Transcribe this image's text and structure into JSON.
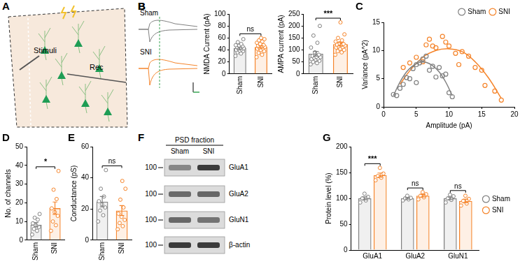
{
  "panels": [
    {
      "panel": "A",
      "schematic": {
        "stimulus": "Stimuli",
        "recording": "Rec"
      }
    },
    {
      "panel": "B",
      "traces": {
        "names": [
          "Sham",
          "SNI"
        ],
        "colors": [
          "#808080",
          "#f5842a"
        ]
      }
    },
    {
      "panel": "F",
      "blot": {
        "title": "PSD fraction",
        "lanes": [
          "Sham",
          "SNI"
        ],
        "rows": [
          {
            "label": "GluA1",
            "marker": 100
          },
          {
            "label": "GluA2",
            "marker": 100
          },
          {
            "label": "GluN1",
            "marker": 100
          },
          {
            "label": "β-actin",
            "marker": 100
          }
        ]
      }
    }
  ],
  "chart_data": [
    {
      "panel": "B",
      "type": "bar",
      "ylabel": "NMDA Current (pA)",
      "categories": [
        "Sham",
        "SNI"
      ],
      "values": [
        43,
        45
      ],
      "errors": [
        2,
        2
      ],
      "points": [
        [
          30,
          34,
          36,
          38,
          39,
          40,
          41,
          42,
          43,
          44,
          45,
          46,
          47,
          48,
          50,
          53,
          58
        ],
        [
          28,
          32,
          35,
          38,
          40,
          42,
          43,
          44,
          45,
          46,
          47,
          48,
          50,
          52,
          54,
          56,
          58,
          60
        ]
      ],
      "colors": [
        "#808080",
        "#f5842a"
      ],
      "ylim": [
        0,
        100
      ],
      "yticks": [
        0,
        20,
        40,
        60,
        80,
        100
      ],
      "grid": false,
      "annotations": [
        "ns"
      ]
    },
    {
      "type": "bar",
      "ylabel": "AMPA current (pA)",
      "categories": [
        "Sham",
        "SNI"
      ],
      "values": [
        84,
        124
      ],
      "errors": [
        10,
        7
      ],
      "points": [
        [
          40,
          45,
          50,
          55,
          60,
          62,
          65,
          68,
          70,
          72,
          75,
          80,
          90,
          110,
          130,
          160,
          200
        ],
        [
          80,
          90,
          95,
          100,
          105,
          110,
          112,
          115,
          118,
          120,
          122,
          125,
          128,
          135,
          140,
          150,
          165,
          215
        ]
      ],
      "colors": [
        "#808080",
        "#f5842a"
      ],
      "ylim": [
        0,
        250
      ],
      "yticks": [
        0,
        50,
        100,
        150,
        200,
        250
      ],
      "grid": false,
      "annotations": [
        "***"
      ]
    },
    {
      "panel": "C",
      "type": "scatter",
      "xlabel": "Amplitude (pA)",
      "ylabel": "Variance (pA^2)",
      "xlim": [
        0,
        20
      ],
      "xticks": [
        0,
        5,
        10,
        15,
        20
      ],
      "ylim": [
        0,
        15
      ],
      "yticks": [
        0,
        5,
        10,
        15
      ],
      "grid": false,
      "legend": "top-right",
      "series": [
        {
          "name": "Sham",
          "color": "#808080",
          "x": [
            1.5,
            2,
            2.5,
            3,
            3.5,
            4,
            4.5,
            5,
            5,
            5.5,
            6,
            6.5,
            7,
            7.5,
            8,
            8.5,
            9,
            9.5,
            10,
            10.5
          ],
          "values": [
            2.2,
            2,
            3.3,
            4,
            5.2,
            5,
            6.8,
            7.5,
            4.3,
            7.8,
            8.5,
            9,
            6.5,
            7.2,
            5.3,
            7,
            5.5,
            5.8,
            2.5,
            1.8
          ],
          "fit": {
            "x": [
              1.5,
              2.5,
              3.5,
              4.5,
              5.5,
              6.5,
              7.5,
              8.5,
              9.5,
              10.5
            ],
            "values": [
              2,
              4.4,
              6.2,
              7.3,
              7.9,
              7.9,
              7.3,
              6.2,
              4.4,
              2
            ]
          }
        },
        {
          "name": "SNI",
          "color": "#f5842a",
          "x": [
            3,
            4,
            5,
            6,
            6.5,
            7,
            7.5,
            8,
            9,
            9.5,
            10,
            11,
            11.5,
            12,
            13,
            14,
            15,
            15.5,
            17,
            18
          ],
          "values": [
            7,
            7.8,
            8.8,
            8,
            11,
            12,
            10.8,
            10.5,
            12.5,
            11.5,
            10.8,
            9.5,
            7.5,
            9.8,
            9,
            7,
            6.5,
            3.8,
            2.8,
            1.2
          ],
          "fit": {
            "x": [
              2.5,
              4,
              6,
              8,
              10,
              12,
              14,
              16,
              18
            ],
            "values": [
              4,
              6.4,
              8.8,
              10,
              10.3,
              9.8,
              8,
              5.2,
              1.5
            ]
          }
        }
      ]
    },
    {
      "panel": "D",
      "type": "bar",
      "ylabel": "No. of channels",
      "categories": [
        "Sham",
        "SNI"
      ],
      "values": [
        8.3,
        17.1
      ],
      "errors": [
        1.1,
        3.3
      ],
      "points": [
        [
          3,
          5,
          6,
          7,
          8,
          9,
          11,
          12,
          14
        ],
        [
          5,
          8,
          10,
          13,
          15,
          17,
          22,
          27,
          37
        ]
      ],
      "colors": [
        "#808080",
        "#f5842a"
      ],
      "ylim": [
        0,
        50
      ],
      "yticks": [
        0,
        10,
        20,
        30,
        40,
        50
      ],
      "grid": false,
      "annotations": [
        "*"
      ]
    },
    {
      "panel": "E",
      "type": "bar",
      "ylabel": "Conductance (pS)",
      "categories": [
        "Sham",
        "SNI"
      ],
      "values": [
        24.7,
        19
      ],
      "errors": [
        3.3,
        3.2
      ],
      "points": [
        [
          12,
          16,
          19,
          21,
          23,
          25,
          28,
          33,
          45
        ],
        [
          7,
          9,
          11,
          13,
          15,
          17,
          21,
          26,
          33,
          38
        ]
      ],
      "colors": [
        "#808080",
        "#f5842a"
      ],
      "ylim": [
        0,
        60
      ],
      "yticks": [
        0,
        20,
        40,
        60
      ],
      "grid": false,
      "annotations": [
        "ns"
      ]
    },
    {
      "panel": "G",
      "type": "bar",
      "ylabel": "Protein level (%)",
      "categories": [
        "GluA1",
        "GluA2",
        "GluN1"
      ],
      "ylim": [
        0,
        200
      ],
      "yticks": [
        0,
        50,
        100,
        150,
        200
      ],
      "grid": false,
      "legend": "right",
      "annotations": [
        "***",
        "ns",
        "ns"
      ],
      "series": [
        {
          "name": "Sham",
          "color": "#808080",
          "values": [
            100,
            100,
            100
          ],
          "errors": [
            3,
            1.5,
            2.5
          ],
          "points": [
            [
              92,
              96,
              100,
              103,
              109
            ],
            [
              96,
              98,
              100,
              101,
              105
            ],
            [
              92,
              97,
              100,
              104,
              107
            ]
          ]
        },
        {
          "name": "SNI",
          "color": "#f5842a",
          "values": [
            145,
            105,
            95
          ],
          "errors": [
            4,
            2.5,
            3.5
          ],
          "points": [
            [
              135,
              140,
              143,
              148,
              159
            ],
            [
              98,
              102,
              105,
              108,
              112
            ],
            [
              86,
              90,
              95,
              99,
              105
            ]
          ]
        }
      ]
    }
  ]
}
